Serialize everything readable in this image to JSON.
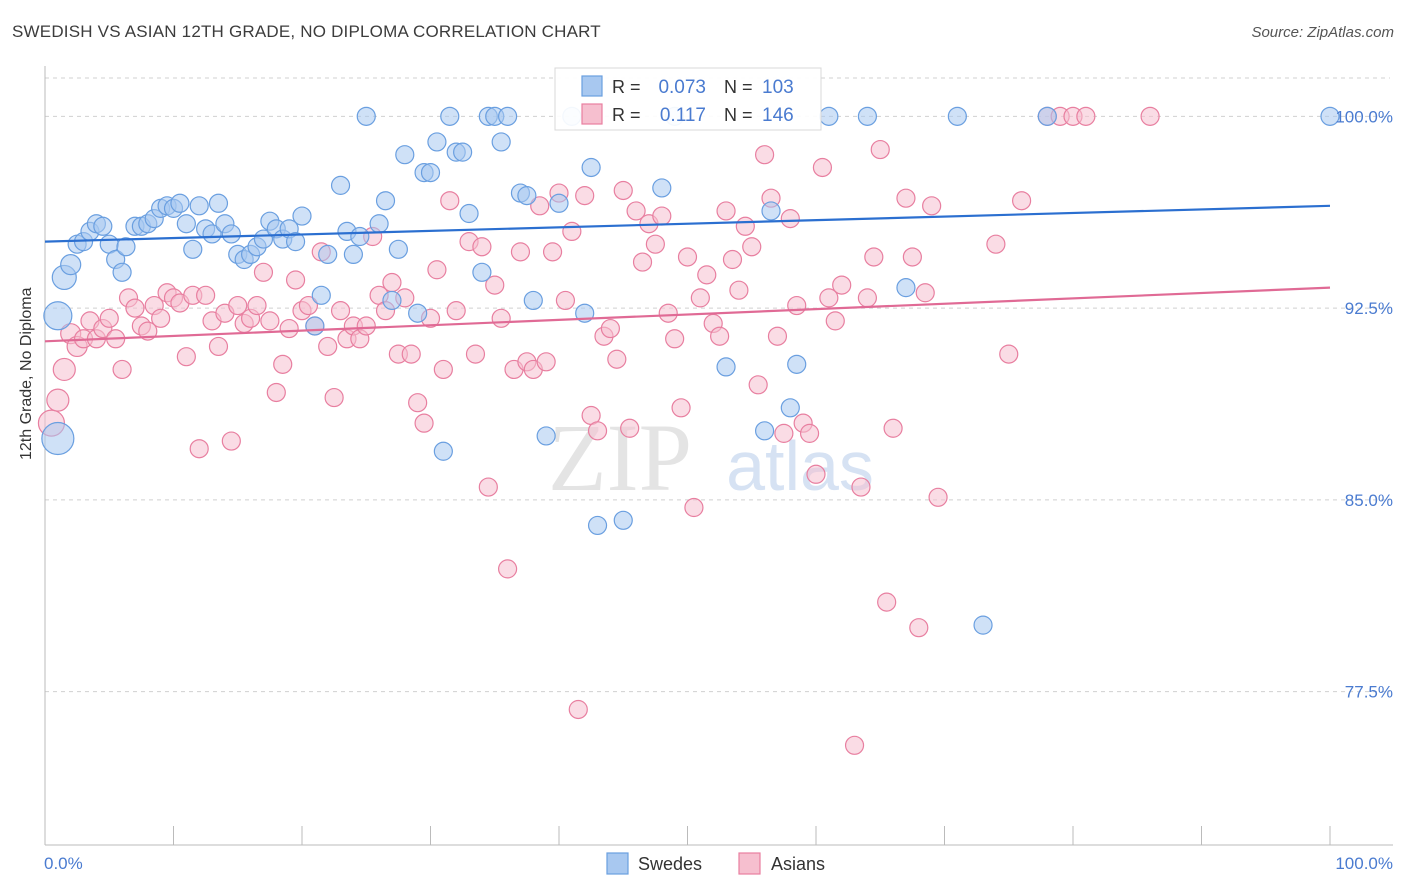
{
  "title": "SWEDISH VS ASIAN 12TH GRADE, NO DIPLOMA CORRELATION CHART",
  "source": "Source: ZipAtlas.com",
  "watermark": {
    "zip": "ZIP",
    "atlas": "atlas"
  },
  "colors": {
    "blue": "#6a9fe0",
    "blue_fill": "#a8c8f0",
    "blue_line": "#2b6fd0",
    "pink": "#e87fa0",
    "pink_fill": "#f6bfcf",
    "pink_line": "#e06a95",
    "grid": "#d0d0d0",
    "tick_label": "#4a7bd0"
  },
  "legend_box": {
    "rows": [
      {
        "r_label": "R =",
        "r_value": "0.073",
        "n_label": "N =",
        "n_value": "103"
      },
      {
        "r_label": "R =",
        "r_value": "0.117",
        "n_label": "N =",
        "n_value": "146"
      }
    ]
  },
  "bottom_legend": [
    "Swedes",
    "Asians"
  ],
  "chart_data": {
    "type": "scatter",
    "title": "SWEDISH VS ASIAN 12TH GRADE, NO DIPLOMA CORRELATION CHART",
    "xlabel": "",
    "ylabel": "12th Grade, No Diploma",
    "xlim": [
      0,
      100
    ],
    "ylim": [
      71.5,
      101.5
    ],
    "x_tick_labels": [
      "0.0%",
      "100.0%"
    ],
    "y_ticks": [
      77.5,
      85.0,
      92.5,
      100.0
    ],
    "y_tick_labels": [
      "77.5%",
      "85.0%",
      "92.5%",
      "100.0%"
    ],
    "grid": true,
    "legend_position": "top-center",
    "series": [
      {
        "name": "Swedes",
        "R": 0.073,
        "N": 103,
        "trend": {
          "x": [
            0,
            100
          ],
          "y": [
            95.1,
            96.5
          ]
        },
        "points": [
          [
            1,
            87.4,
            16
          ],
          [
            1,
            92.2,
            14
          ],
          [
            1.5,
            93.7,
            12
          ],
          [
            2,
            94.2,
            10
          ],
          [
            2.5,
            95.0,
            9
          ],
          [
            3,
            95.1,
            9
          ],
          [
            3.5,
            95.5,
            9
          ],
          [
            4,
            95.8,
            9
          ],
          [
            4.5,
            95.7,
            9
          ],
          [
            5,
            95.0,
            9
          ],
          [
            5.5,
            94.4,
            9
          ],
          [
            6,
            93.9,
            9
          ],
          [
            6.3,
            94.9,
            9
          ],
          [
            7,
            95.7,
            9
          ],
          [
            7.5,
            95.7,
            9
          ],
          [
            8,
            95.8,
            9
          ],
          [
            8.5,
            96.0,
            9
          ],
          [
            9,
            96.4,
            9
          ],
          [
            9.5,
            96.5,
            9
          ],
          [
            10,
            96.4,
            9
          ],
          [
            10.5,
            96.6,
            9
          ],
          [
            11,
            95.8,
            9
          ],
          [
            11.5,
            94.8,
            9
          ],
          [
            12,
            96.5,
            9
          ],
          [
            12.5,
            95.6,
            9
          ],
          [
            13,
            95.4,
            9
          ],
          [
            13.5,
            96.6,
            9
          ],
          [
            14,
            95.8,
            9
          ],
          [
            14.5,
            95.4,
            9
          ],
          [
            15,
            94.6,
            9
          ],
          [
            15.5,
            94.4,
            9
          ],
          [
            16,
            94.6,
            9
          ],
          [
            16.5,
            94.9,
            9
          ],
          [
            17,
            95.2,
            9
          ],
          [
            17.5,
            95.9,
            9
          ],
          [
            18,
            95.6,
            9
          ],
          [
            18.5,
            95.2,
            9
          ],
          [
            19,
            95.6,
            9
          ],
          [
            19.5,
            95.1,
            9
          ],
          [
            20,
            96.1,
            9
          ],
          [
            21,
            91.8,
            9
          ],
          [
            21.5,
            93.0,
            9
          ],
          [
            22,
            94.6,
            9
          ],
          [
            23,
            97.3,
            9
          ],
          [
            23.5,
            95.5,
            9
          ],
          [
            24,
            94.6,
            9
          ],
          [
            24.5,
            95.3,
            9
          ],
          [
            25,
            100,
            9
          ],
          [
            26,
            95.8,
            9
          ],
          [
            26.5,
            96.7,
            9
          ],
          [
            27,
            92.8,
            9
          ],
          [
            27.5,
            94.8,
            9
          ],
          [
            28,
            98.5,
            9
          ],
          [
            29,
            92.3,
            9
          ],
          [
            29.5,
            97.8,
            9
          ],
          [
            30,
            97.8,
            9
          ],
          [
            30.5,
            99.0,
            9
          ],
          [
            31,
            86.9,
            9
          ],
          [
            31.5,
            100,
            9
          ],
          [
            32,
            98.6,
            9
          ],
          [
            32.5,
            98.6,
            9
          ],
          [
            33,
            96.2,
            9
          ],
          [
            34,
            93.9,
            9
          ],
          [
            34.5,
            100,
            9
          ],
          [
            35,
            100,
            9
          ],
          [
            35.5,
            99.0,
            9
          ],
          [
            36,
            100,
            9
          ],
          [
            37,
            97.0,
            9
          ],
          [
            37.5,
            96.9,
            9
          ],
          [
            38,
            92.8,
            9
          ],
          [
            39,
            87.5,
            9
          ],
          [
            40,
            96.6,
            9
          ],
          [
            41,
            100,
            9
          ],
          [
            42,
            92.3,
            9
          ],
          [
            42.5,
            98.0,
            9
          ],
          [
            43,
            84.0,
            9
          ],
          [
            45,
            84.2,
            9
          ],
          [
            48,
            97.2,
            9
          ],
          [
            49,
            100,
            9
          ],
          [
            53,
            90.2,
            9
          ],
          [
            56,
            87.7,
            9
          ],
          [
            56.5,
            96.3,
            9
          ],
          [
            58,
            88.6,
            9
          ],
          [
            58.5,
            90.3,
            9
          ],
          [
            61,
            100,
            9
          ],
          [
            64,
            100,
            9
          ],
          [
            67,
            93.3,
            9
          ],
          [
            71,
            100,
            9
          ],
          [
            73,
            80.1,
            9
          ],
          [
            78,
            100,
            9
          ],
          [
            100,
            100,
            9
          ]
        ]
      },
      {
        "name": "Asians",
        "R": 0.117,
        "N": 146,
        "trend": {
          "x": [
            0,
            100
          ],
          "y": [
            91.2,
            93.3
          ]
        },
        "points": [
          [
            0.5,
            88.0,
            13
          ],
          [
            1,
            88.9,
            11
          ],
          [
            1.5,
            90.1,
            11
          ],
          [
            2,
            91.5,
            10
          ],
          [
            2.5,
            91.0,
            10
          ],
          [
            3,
            91.3,
            9
          ],
          [
            3.5,
            92.0,
            9
          ],
          [
            4,
            91.3,
            9
          ],
          [
            4.5,
            91.7,
            9
          ],
          [
            5,
            92.1,
            9
          ],
          [
            5.5,
            91.3,
            9
          ],
          [
            6,
            90.1,
            9
          ],
          [
            6.5,
            92.9,
            9
          ],
          [
            7,
            92.5,
            9
          ],
          [
            7.5,
            91.8,
            9
          ],
          [
            8,
            91.6,
            9
          ],
          [
            8.5,
            92.6,
            9
          ],
          [
            9,
            92.1,
            9
          ],
          [
            9.5,
            93.1,
            9
          ],
          [
            10,
            92.9,
            9
          ],
          [
            10.5,
            92.7,
            9
          ],
          [
            11,
            90.6,
            9
          ],
          [
            11.5,
            93.0,
            9
          ],
          [
            12,
            87.0,
            9
          ],
          [
            12.5,
            93.0,
            9
          ],
          [
            13,
            92.0,
            9
          ],
          [
            13.5,
            91.0,
            9
          ],
          [
            14,
            92.3,
            9
          ],
          [
            14.5,
            87.3,
            9
          ],
          [
            15,
            92.6,
            9
          ],
          [
            15.5,
            91.9,
            9
          ],
          [
            16,
            92.1,
            9
          ],
          [
            16.5,
            92.6,
            9
          ],
          [
            17,
            93.9,
            9
          ],
          [
            17.5,
            92.0,
            9
          ],
          [
            18,
            89.2,
            9
          ],
          [
            18.5,
            90.3,
            9
          ],
          [
            19,
            91.7,
            9
          ],
          [
            19.5,
            93.6,
            9
          ],
          [
            20,
            92.4,
            9
          ],
          [
            20.5,
            92.6,
            9
          ],
          [
            21,
            91.8,
            9
          ],
          [
            21.5,
            94.7,
            9
          ],
          [
            22,
            91.0,
            9
          ],
          [
            22.5,
            89.0,
            9
          ],
          [
            23,
            92.4,
            9
          ],
          [
            23.5,
            91.3,
            9
          ],
          [
            24,
            91.8,
            9
          ],
          [
            24.5,
            91.3,
            9
          ],
          [
            25,
            91.8,
            9
          ],
          [
            25.5,
            95.3,
            9
          ],
          [
            26,
            93.0,
            9
          ],
          [
            26.5,
            92.4,
            9
          ],
          [
            27,
            93.5,
            9
          ],
          [
            27.5,
            90.7,
            9
          ],
          [
            28,
            92.9,
            9
          ],
          [
            28.5,
            90.7,
            9
          ],
          [
            29,
            88.8,
            9
          ],
          [
            29.5,
            88.0,
            9
          ],
          [
            30,
            92.1,
            9
          ],
          [
            30.5,
            94.0,
            9
          ],
          [
            31,
            90.1,
            9
          ],
          [
            31.5,
            96.7,
            9
          ],
          [
            32,
            92.4,
            9
          ],
          [
            33,
            95.1,
            9
          ],
          [
            33.5,
            90.7,
            9
          ],
          [
            34,
            94.9,
            9
          ],
          [
            34.5,
            85.5,
            9
          ],
          [
            35,
            93.4,
            9
          ],
          [
            35.5,
            92.1,
            9
          ],
          [
            36,
            82.3,
            9
          ],
          [
            36.5,
            90.1,
            9
          ],
          [
            37,
            94.7,
            9
          ],
          [
            37.5,
            90.4,
            9
          ],
          [
            38,
            90.1,
            9
          ],
          [
            38.5,
            96.5,
            9
          ],
          [
            39,
            90.4,
            9
          ],
          [
            39.5,
            94.7,
            9
          ],
          [
            40,
            97.0,
            9
          ],
          [
            40.5,
            92.8,
            9
          ],
          [
            41,
            95.5,
            9
          ],
          [
            41.5,
            76.8,
            9
          ],
          [
            42,
            96.9,
            9
          ],
          [
            42.5,
            88.3,
            9
          ],
          [
            43,
            87.7,
            9
          ],
          [
            43.5,
            91.4,
            9
          ],
          [
            44,
            91.7,
            9
          ],
          [
            44.5,
            90.5,
            9
          ],
          [
            45,
            97.1,
            9
          ],
          [
            45.5,
            87.8,
            9
          ],
          [
            46,
            96.3,
            9
          ],
          [
            46.5,
            94.3,
            9
          ],
          [
            47,
            95.8,
            9
          ],
          [
            47.5,
            95.0,
            9
          ],
          [
            48,
            96.1,
            9
          ],
          [
            48.5,
            92.3,
            9
          ],
          [
            49,
            91.3,
            9
          ],
          [
            49.5,
            88.6,
            9
          ],
          [
            50,
            94.5,
            9
          ],
          [
            50.5,
            84.7,
            9
          ],
          [
            51,
            92.9,
            9
          ],
          [
            51.5,
            93.8,
            9
          ],
          [
            52,
            91.9,
            9
          ],
          [
            52.5,
            91.4,
            9
          ],
          [
            53,
            96.3,
            9
          ],
          [
            53.5,
            94.4,
            9
          ],
          [
            54,
            93.2,
            9
          ],
          [
            54.5,
            95.7,
            9
          ],
          [
            55,
            94.9,
            9
          ],
          [
            55.5,
            89.5,
            9
          ],
          [
            56,
            98.5,
            9
          ],
          [
            56.5,
            96.8,
            9
          ],
          [
            57,
            91.4,
            9
          ],
          [
            57.5,
            87.6,
            9
          ],
          [
            58,
            96.0,
            9
          ],
          [
            58.5,
            92.6,
            9
          ],
          [
            59,
            88.0,
            9
          ],
          [
            59.5,
            87.6,
            9
          ],
          [
            60,
            86.0,
            9
          ],
          [
            60.5,
            98.0,
            9
          ],
          [
            61,
            92.9,
            9
          ],
          [
            61.5,
            92.0,
            9
          ],
          [
            62,
            93.4,
            9
          ],
          [
            63,
            75.4,
            9
          ],
          [
            63.5,
            85.5,
            9
          ],
          [
            64,
            92.9,
            9
          ],
          [
            64.5,
            94.5,
            9
          ],
          [
            65,
            98.7,
            9
          ],
          [
            65.5,
            81.0,
            9
          ],
          [
            66,
            87.8,
            9
          ],
          [
            67,
            96.8,
            9
          ],
          [
            67.5,
            94.5,
            9
          ],
          [
            68,
            80.0,
            9
          ],
          [
            68.5,
            93.1,
            9
          ],
          [
            69,
            96.5,
            9
          ],
          [
            69.5,
            85.1,
            9
          ],
          [
            74,
            95.0,
            9
          ],
          [
            75,
            90.7,
            9
          ],
          [
            76,
            96.7,
            9
          ],
          [
            78,
            100,
            9
          ],
          [
            79,
            100,
            9
          ],
          [
            80,
            100,
            9
          ],
          [
            81,
            100,
            9
          ],
          [
            86,
            100,
            9
          ]
        ]
      }
    ]
  }
}
